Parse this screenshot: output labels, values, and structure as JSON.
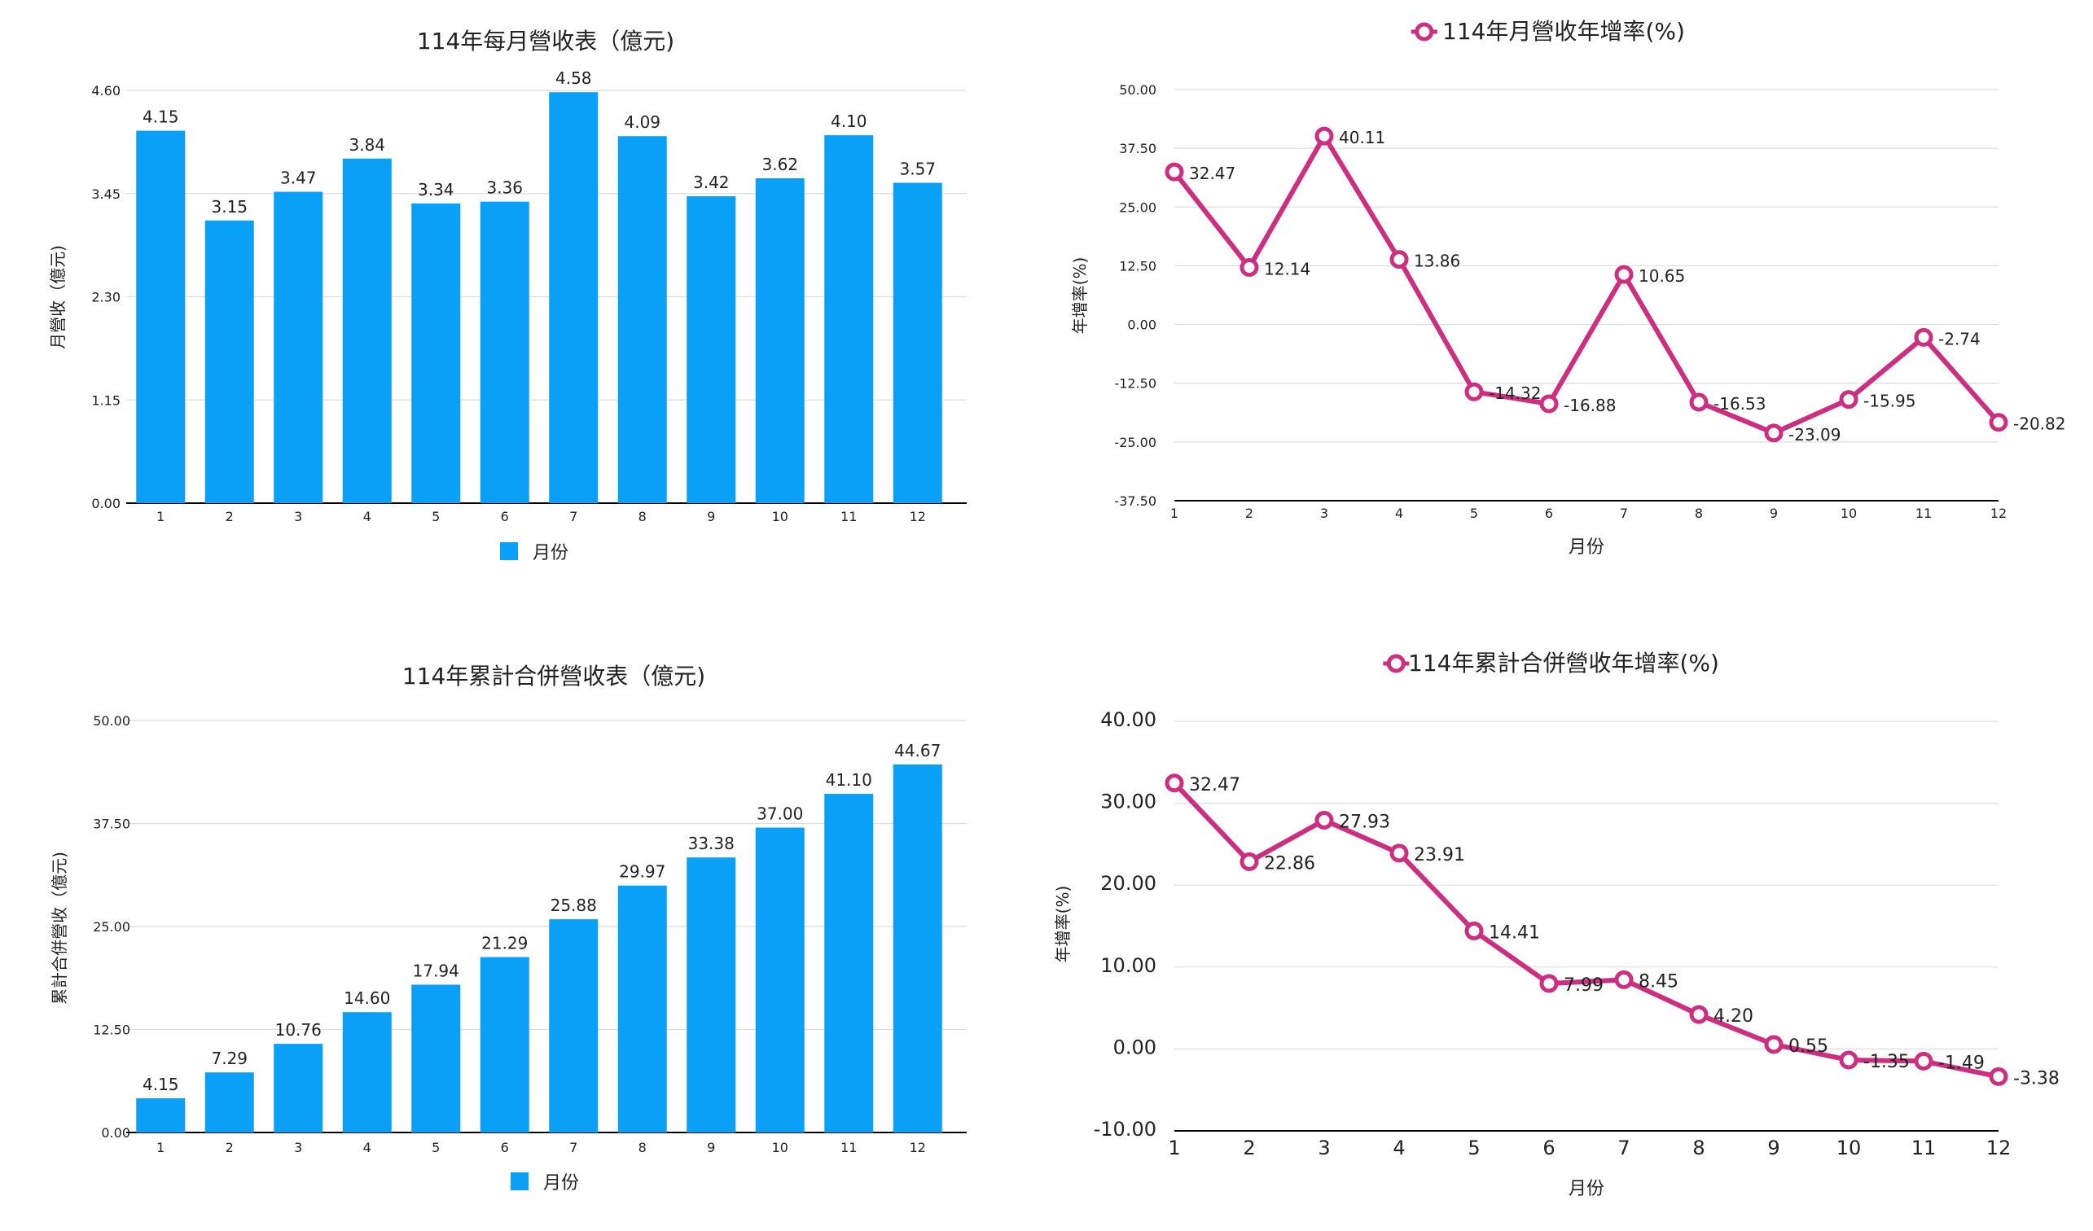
{
  "colors": {
    "bar": "#0aa0f8",
    "line": "#cc2f7f",
    "grid": "#dddddd",
    "axis": "#000000",
    "text": "#222222"
  },
  "chart_data": [
    {
      "type": "bar",
      "title": "114年每月營收表（億元)",
      "xlabel": "",
      "ylabel": "月營收（億元)",
      "legend": "月份",
      "legend_position": "bottom",
      "categories": [
        "1",
        "2",
        "3",
        "4",
        "5",
        "6",
        "7",
        "8",
        "9",
        "10",
        "11",
        "12"
      ],
      "values": [
        4.15,
        3.15,
        3.47,
        3.84,
        3.34,
        3.36,
        4.58,
        4.09,
        3.42,
        3.62,
        4.1,
        3.57
      ],
      "labels": [
        "4.15",
        "3.15",
        "3.47",
        "3.84",
        "3.34",
        "3.36",
        "4.58",
        "4.09",
        "3.42",
        "3.62",
        "4.10",
        "3.57"
      ],
      "yticks": [
        "0.00",
        "1.15",
        "2.30",
        "3.45",
        "4.60"
      ],
      "ylim": [
        0,
        4.6
      ],
      "grid": true
    },
    {
      "type": "line",
      "title": "114年月營收年增率(%)",
      "xlabel": "月份",
      "ylabel": "年增率(%)",
      "legend_position": "top",
      "categories": [
        "1",
        "2",
        "3",
        "4",
        "5",
        "6",
        "7",
        "8",
        "9",
        "10",
        "11",
        "12"
      ],
      "values": [
        32.47,
        12.14,
        40.11,
        13.86,
        -14.32,
        -16.88,
        10.65,
        -16.53,
        -23.09,
        -15.95,
        -2.74,
        -20.82
      ],
      "labels": [
        "32.47",
        "12.14",
        "40.11",
        "13.86",
        "-14.32",
        "-16.88",
        "10.65",
        "-16.53",
        "-23.09",
        "-15.95",
        "-2.74",
        "-20.82"
      ],
      "yticks": [
        "-37.50",
        "-25.00",
        "-12.50",
        "0.00",
        "12.50",
        "25.00",
        "37.50",
        "50.00"
      ],
      "ylim": [
        -37.5,
        50
      ],
      "grid": true
    },
    {
      "type": "bar",
      "title": "114年累計合併營收表（億元)",
      "xlabel": "",
      "ylabel": "累計合併營收（億元)",
      "legend": "月份",
      "legend_position": "bottom",
      "categories": [
        "1",
        "2",
        "3",
        "4",
        "5",
        "6",
        "7",
        "8",
        "9",
        "10",
        "11",
        "12"
      ],
      "values": [
        4.15,
        7.29,
        10.76,
        14.6,
        17.94,
        21.29,
        25.88,
        29.97,
        33.38,
        37.0,
        41.1,
        44.67
      ],
      "labels": [
        "4.15",
        "7.29",
        "10.76",
        "14.60",
        "17.94",
        "21.29",
        "25.88",
        "29.97",
        "33.38",
        "37.00",
        "41.10",
        "44.67"
      ],
      "yticks": [
        "0.00",
        "12.50",
        "25.00",
        "37.50",
        "50.00"
      ],
      "ylim": [
        0,
        50
      ],
      "grid": true
    },
    {
      "type": "line",
      "title": "114年累計合併營收年增率(%)",
      "xlabel": "月份",
      "ylabel": "年增率(%)",
      "legend_position": "top",
      "categories": [
        "1",
        "2",
        "3",
        "4",
        "5",
        "6",
        "7",
        "8",
        "9",
        "10",
        "11",
        "12"
      ],
      "values": [
        32.47,
        22.86,
        27.93,
        23.91,
        14.41,
        7.99,
        8.45,
        4.2,
        0.55,
        -1.35,
        -1.49,
        -3.38
      ],
      "labels": [
        "32.47",
        "22.86",
        "27.93",
        "23.91",
        "14.41",
        "7.99",
        "8.45",
        "4.20",
        "0.55",
        "-1.35",
        "-1.49",
        "-3.38"
      ],
      "yticks": [
        "-10.00",
        "0.00",
        "10.00",
        "20.00",
        "30.00",
        "40.00"
      ],
      "ylim": [
        -10,
        40
      ],
      "grid": true
    }
  ]
}
